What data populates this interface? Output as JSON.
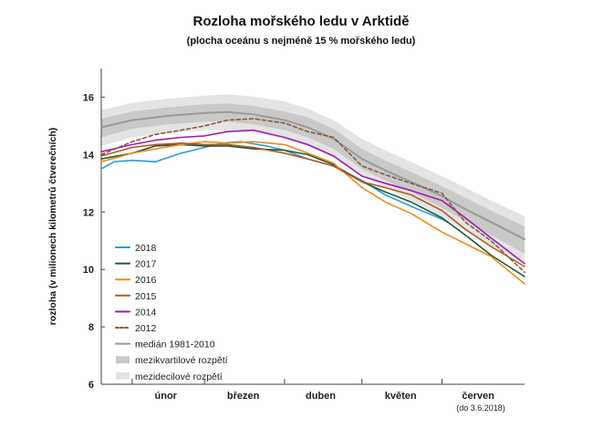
{
  "chart_data": {
    "type": "line",
    "title": "Rozloha mořského ledu v Arktidě",
    "subtitle": "(plocha oceánu s nejméně 15 % mořského ledu)",
    "ylabel": "rozloha (v milionech kilometrů čtverečních)",
    "ylim": [
      6,
      17
    ],
    "yticks": [
      6,
      8,
      10,
      12,
      14,
      16
    ],
    "x_axis": {
      "start_date": "2018-01-20",
      "end_date": "2018-07-03",
      "months": [
        {
          "label": "únor",
          "center": "2018-02-14"
        },
        {
          "label": "březen",
          "center": "2018-03-16"
        },
        {
          "label": "duben",
          "center": "2018-04-15"
        },
        {
          "label": "květen",
          "center": "2018-05-16"
        },
        {
          "label": "červen",
          "center": "2018-06-15"
        }
      ],
      "month_boundaries": [
        "2018-02-01",
        "2018-03-01",
        "2018-04-01",
        "2018-05-01",
        "2018-06-01"
      ],
      "note": "(do 3.6.2018)"
    },
    "grid": false,
    "legend_position": "bottom-left",
    "median": {
      "name": "medián 1981-2010",
      "color": "#9a9a9a",
      "x": [
        "2018-01-20",
        "2018-02-01",
        "2018-02-15",
        "2018-03-01",
        "2018-03-10",
        "2018-03-20",
        "2018-04-01",
        "2018-04-10",
        "2018-04-20",
        "2018-05-01",
        "2018-05-10",
        "2018-05-20",
        "2018-06-01",
        "2018-06-10",
        "2018-06-20",
        "2018-07-03"
      ],
      "values": [
        14.95,
        15.2,
        15.35,
        15.45,
        15.48,
        15.4,
        15.2,
        14.95,
        14.55,
        13.85,
        13.45,
        13.05,
        12.55,
        12.1,
        11.65,
        11.05
      ]
    },
    "interquartile": {
      "name": "mezikvartilové rozpětí",
      "color": "#c9c9c9",
      "x": [
        "2018-01-20",
        "2018-02-01",
        "2018-02-15",
        "2018-03-01",
        "2018-03-10",
        "2018-03-20",
        "2018-04-01",
        "2018-04-10",
        "2018-04-20",
        "2018-05-01",
        "2018-05-10",
        "2018-05-20",
        "2018-06-01",
        "2018-06-10",
        "2018-06-20",
        "2018-07-03"
      ],
      "low": [
        14.6,
        14.9,
        15.05,
        15.15,
        15.15,
        15.05,
        14.85,
        14.6,
        14.2,
        13.5,
        13.1,
        12.7,
        12.15,
        11.7,
        11.2,
        10.55
      ],
      "high": [
        15.25,
        15.5,
        15.65,
        15.75,
        15.78,
        15.7,
        15.5,
        15.3,
        14.9,
        14.2,
        13.8,
        13.4,
        12.9,
        12.5,
        12.05,
        11.5
      ]
    },
    "interdecile": {
      "name": "mezidecilové rozpětí",
      "color": "#e4e4e4",
      "x": [
        "2018-01-20",
        "2018-02-01",
        "2018-02-15",
        "2018-03-01",
        "2018-03-10",
        "2018-03-20",
        "2018-04-01",
        "2018-04-10",
        "2018-04-20",
        "2018-05-01",
        "2018-05-10",
        "2018-05-20",
        "2018-06-01",
        "2018-06-10",
        "2018-06-20",
        "2018-07-03"
      ],
      "low": [
        14.3,
        14.6,
        14.75,
        14.85,
        14.85,
        14.75,
        14.55,
        14.3,
        13.9,
        13.25,
        12.85,
        12.4,
        11.85,
        11.35,
        10.85,
        10.2
      ],
      "high": [
        15.55,
        15.8,
        15.95,
        16.05,
        16.1,
        16.02,
        15.85,
        15.6,
        15.2,
        14.55,
        14.15,
        13.75,
        13.25,
        12.85,
        12.4,
        11.85
      ]
    },
    "series": [
      {
        "name": "2018",
        "color": "#2a9fd8",
        "dash": false,
        "x": [
          "2018-01-20",
          "2018-01-25",
          "2018-02-01",
          "2018-02-10",
          "2018-02-20",
          "2018-03-01",
          "2018-03-08",
          "2018-03-15",
          "2018-03-25",
          "2018-04-01",
          "2018-04-10",
          "2018-04-20",
          "2018-05-01",
          "2018-05-10",
          "2018-05-20",
          "2018-06-01",
          "2018-06-03"
        ],
        "values": [
          13.5,
          13.75,
          13.8,
          13.75,
          14.05,
          14.25,
          14.4,
          14.45,
          14.3,
          14.15,
          13.85,
          13.6,
          13.1,
          12.6,
          12.2,
          11.75,
          11.65
        ]
      },
      {
        "name": "2017",
        "color": "#1b5a3a",
        "dash": false,
        "x": [
          "2018-01-20",
          "2018-02-01",
          "2018-02-10",
          "2018-02-20",
          "2018-03-01",
          "2018-03-10",
          "2018-03-20",
          "2018-04-01",
          "2018-04-10",
          "2018-04-20",
          "2018-05-01",
          "2018-05-10",
          "2018-05-20",
          "2018-06-01",
          "2018-06-10",
          "2018-06-20",
          "2018-07-03"
        ],
        "values": [
          13.85,
          14.05,
          14.3,
          14.35,
          14.3,
          14.3,
          14.2,
          14.15,
          14.0,
          13.65,
          13.05,
          12.7,
          12.35,
          11.8,
          11.2,
          10.5,
          9.75
        ]
      },
      {
        "name": "2016",
        "color": "#f08a1c",
        "dash": false,
        "x": [
          "2018-01-20",
          "2018-02-01",
          "2018-02-10",
          "2018-02-20",
          "2018-03-01",
          "2018-03-10",
          "2018-03-20",
          "2018-04-01",
          "2018-04-10",
          "2018-04-20",
          "2018-05-01",
          "2018-05-10",
          "2018-05-20",
          "2018-06-01",
          "2018-06-10",
          "2018-06-20",
          "2018-07-03"
        ],
        "values": [
          13.75,
          14.05,
          14.2,
          14.35,
          14.45,
          14.4,
          14.45,
          14.35,
          14.05,
          13.7,
          12.85,
          12.35,
          11.95,
          11.3,
          10.9,
          10.45,
          9.5
        ]
      },
      {
        "name": "2015",
        "color": "#b45a1c",
        "dash": false,
        "x": [
          "2018-01-20",
          "2018-02-01",
          "2018-02-10",
          "2018-02-20",
          "2018-03-01",
          "2018-03-10",
          "2018-03-20",
          "2018-04-01",
          "2018-04-10",
          "2018-04-20",
          "2018-05-01",
          "2018-05-10",
          "2018-05-20",
          "2018-06-01",
          "2018-06-10",
          "2018-06-20",
          "2018-07-03"
        ],
        "values": [
          13.95,
          14.25,
          14.35,
          14.4,
          14.35,
          14.35,
          14.25,
          14.05,
          13.85,
          13.6,
          13.05,
          12.85,
          12.6,
          12.05,
          11.4,
          10.8,
          10.1
        ]
      },
      {
        "name": "2014",
        "color": "#a21caf",
        "dash": false,
        "x": [
          "2018-01-20",
          "2018-02-01",
          "2018-02-10",
          "2018-02-20",
          "2018-03-01",
          "2018-03-10",
          "2018-03-20",
          "2018-04-01",
          "2018-04-10",
          "2018-04-20",
          "2018-05-01",
          "2018-05-10",
          "2018-05-20",
          "2018-06-01",
          "2018-06-10",
          "2018-06-20",
          "2018-07-03"
        ],
        "values": [
          14.1,
          14.35,
          14.5,
          14.6,
          14.65,
          14.8,
          14.85,
          14.6,
          14.35,
          13.95,
          13.25,
          13.0,
          12.75,
          12.4,
          11.8,
          11.1,
          10.2
        ]
      },
      {
        "name": "2012",
        "color": "#8a5a44",
        "dash": true,
        "x": [
          "2018-01-20",
          "2018-02-01",
          "2018-02-10",
          "2018-02-20",
          "2018-03-01",
          "2018-03-10",
          "2018-03-20",
          "2018-04-01",
          "2018-04-10",
          "2018-04-20",
          "2018-05-01",
          "2018-05-10",
          "2018-05-20",
          "2018-06-01",
          "2018-06-10",
          "2018-06-20",
          "2018-07-03"
        ],
        "values": [
          14.0,
          14.45,
          14.7,
          14.85,
          15.0,
          15.2,
          15.25,
          15.1,
          14.8,
          14.6,
          13.6,
          13.3,
          13.0,
          12.65,
          11.65,
          11.0,
          9.9
        ]
      }
    ]
  }
}
